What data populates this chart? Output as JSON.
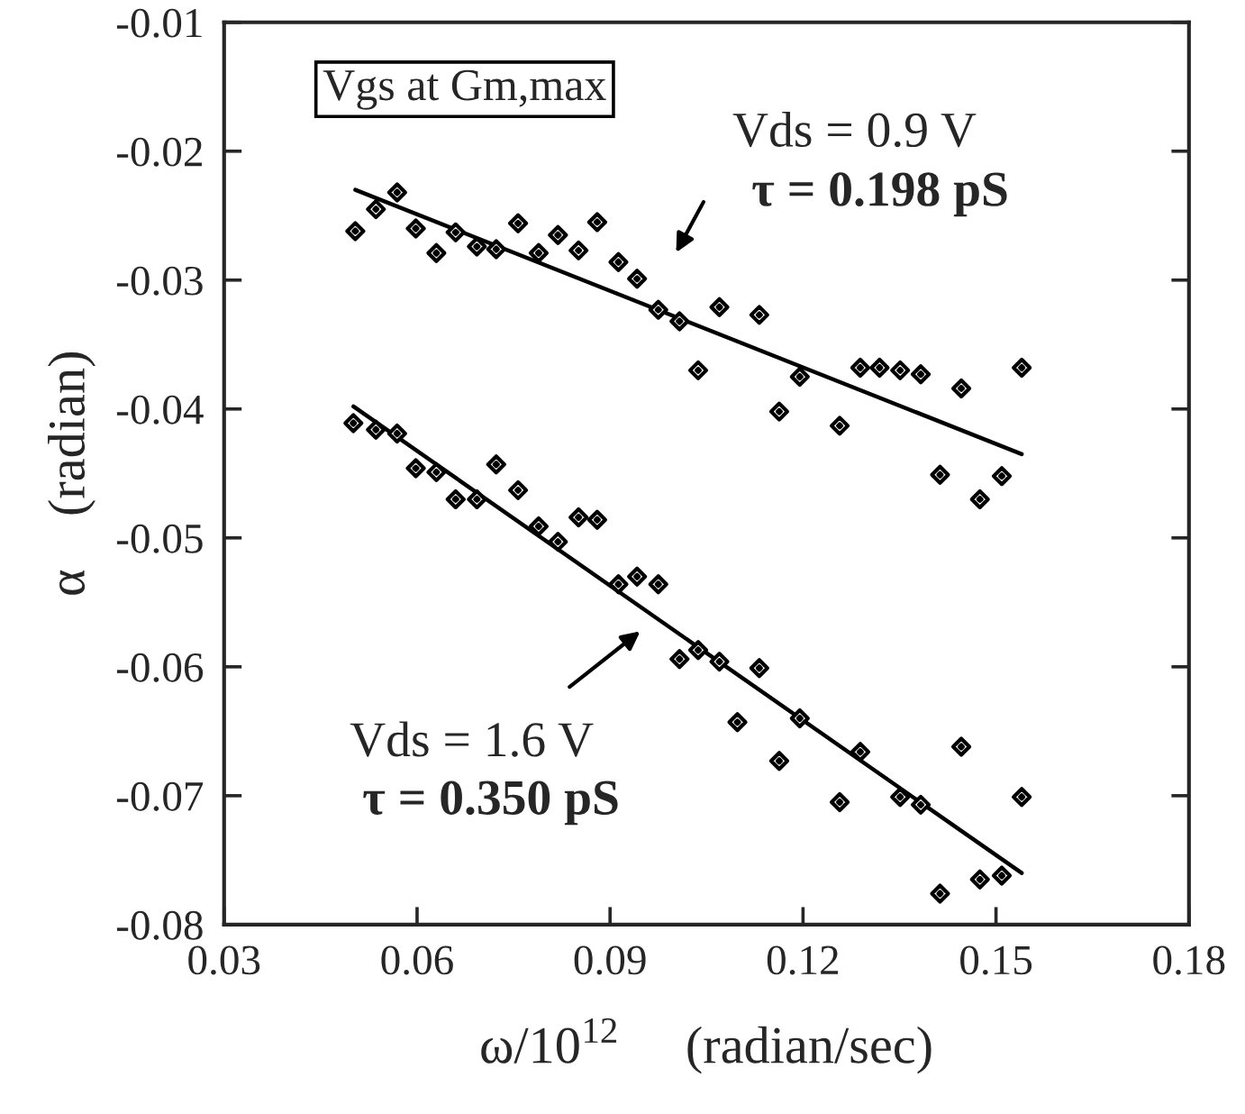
{
  "chart_data": {
    "type": "scatter",
    "xlabel": "ω/10$^{12}$     (radian/sec)",
    "ylabel": "α    (radian)",
    "xlim": [
      0.03,
      0.18
    ],
    "xticks": [
      0.03,
      0.06,
      0.09,
      0.12,
      0.15,
      0.18
    ],
    "ylim": [
      -0.08,
      -0.01
    ],
    "yticks": [
      -0.08,
      -0.07,
      -0.06,
      -0.05,
      -0.04,
      -0.03,
      -0.02,
      -0.01
    ],
    "grid": false,
    "legend": false,
    "marker": "diamond",
    "series": [
      {
        "color": "#000000",
        "x": [
          0.0504,
          0.0536,
          0.0569,
          0.0598,
          0.063,
          0.066,
          0.0693,
          0.0723,
          0.0757,
          0.0789,
          0.0819,
          0.0851,
          0.088,
          0.0913,
          0.0942,
          0.0975,
          0.1008,
          0.1037,
          0.107,
          0.1132,
          0.1163,
          0.1195,
          0.1257,
          0.1289,
          0.1319,
          0.1351,
          0.1383,
          0.1413,
          0.1446,
          0.1475,
          0.1509,
          0.154
        ],
        "values": [
          -0.0262,
          -0.0245,
          -0.0232,
          -0.026,
          -0.0279,
          -0.0263,
          -0.0274,
          -0.0276,
          -0.0256,
          -0.0279,
          -0.0265,
          -0.0277,
          -0.0255,
          -0.0286,
          -0.0299,
          -0.0323,
          -0.0332,
          -0.037,
          -0.0321,
          -0.0327,
          -0.0402,
          -0.0375,
          -0.0413,
          -0.0368,
          -0.0368,
          -0.037,
          -0.0373,
          -0.0451,
          -0.0384,
          -0.047,
          -0.0452,
          -0.0368
        ]
      },
      {
        "type": "line",
        "color": "#000000",
        "marker": "none",
        "line_style": "solid",
        "x": [
          0.0504,
          0.154
        ],
        "values": [
          -0.023,
          -0.0435
        ]
      },
      {
        "color": "#000000",
        "x": [
          0.0501,
          0.0536,
          0.0569,
          0.0598,
          0.063,
          0.066,
          0.0693,
          0.0723,
          0.0757,
          0.0789,
          0.0819,
          0.0851,
          0.088,
          0.0913,
          0.0942,
          0.0975,
          0.1008,
          0.1037,
          0.107,
          0.1098,
          0.1132,
          0.1163,
          0.1195,
          0.1257,
          0.1289,
          0.1351,
          0.1383,
          0.1413,
          0.1446,
          0.1475,
          0.1509,
          0.154
        ],
        "values": [
          -0.0411,
          -0.0416,
          -0.0419,
          -0.0446,
          -0.0449,
          -0.047,
          -0.047,
          -0.0443,
          -0.0463,
          -0.0491,
          -0.0503,
          -0.0484,
          -0.0486,
          -0.0536,
          -0.053,
          -0.0536,
          -0.0594,
          -0.0587,
          -0.0596,
          -0.0643,
          -0.0601,
          -0.0673,
          -0.064,
          -0.0705,
          -0.0666,
          -0.0701,
          -0.0707,
          -0.0776,
          -0.0662,
          -0.0765,
          -0.0762,
          -0.0701
        ]
      },
      {
        "type": "line",
        "color": "#000000",
        "marker": "none",
        "line_style": "solid",
        "x": [
          0.0501,
          0.154
        ],
        "values": [
          -0.0398,
          -0.076
        ]
      }
    ],
    "annotations": [
      "Vgs at Gm,max",
      "Vds = 0.9 V",
      "τ = 0.198 pS",
      "Vds = 1.6 V",
      "τ = 0.350 pS"
    ]
  }
}
